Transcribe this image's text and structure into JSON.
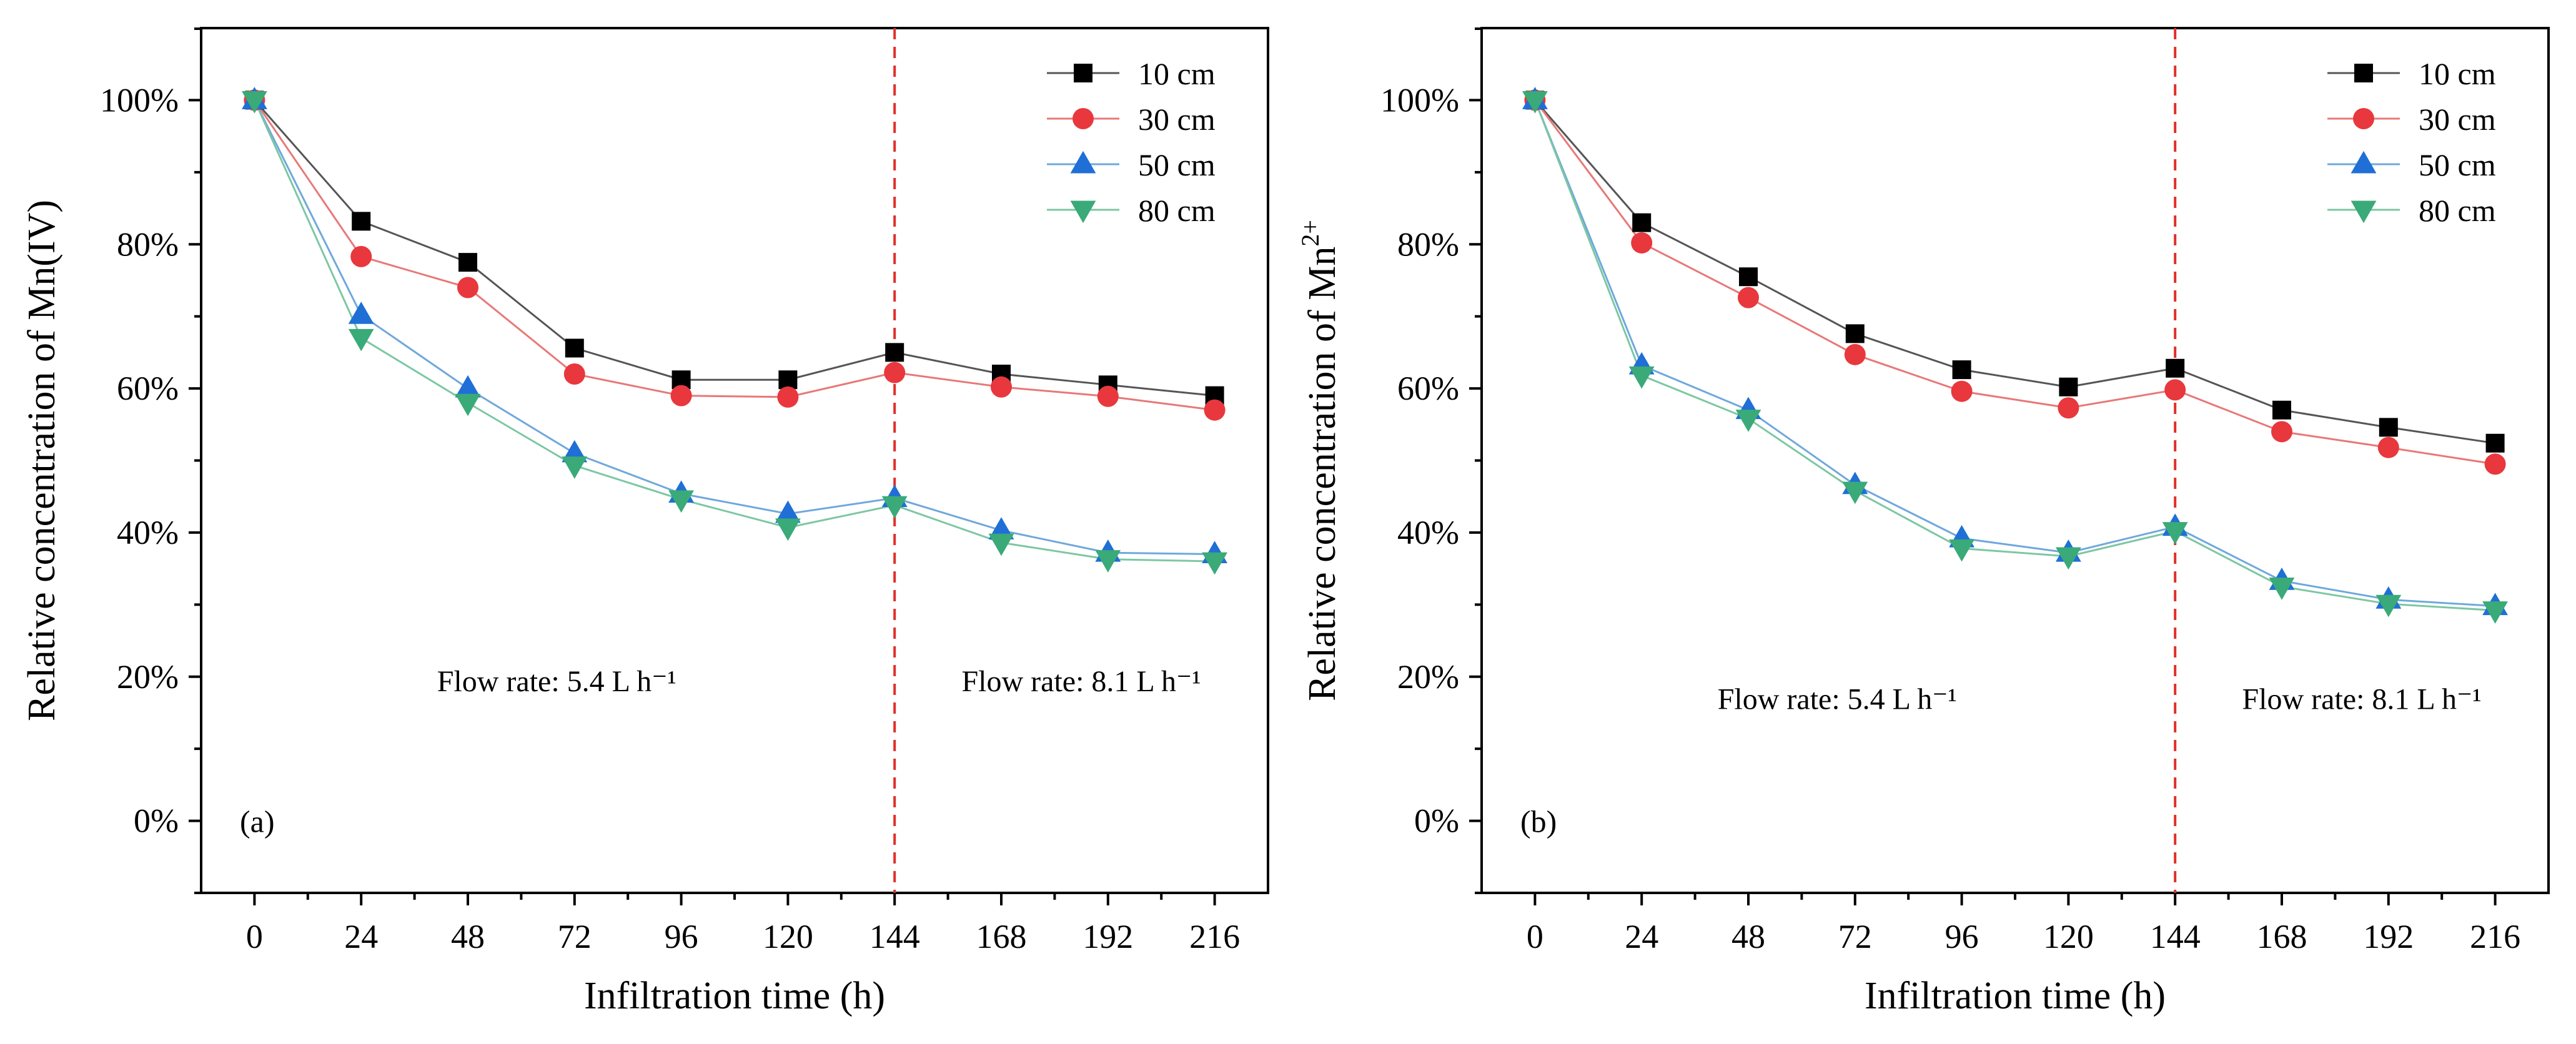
{
  "chart_data": [
    {
      "type": "line",
      "panel_label": "(a)",
      "xlabel": "Infiltration time (h)",
      "ylabel": "Relative concentration of Mn(IV)",
      "ylabel_sup": "",
      "x": [
        0,
        24,
        48,
        72,
        96,
        120,
        144,
        168,
        192,
        216
      ],
      "xlim": [
        -12,
        228
      ],
      "ylim": [
        -10,
        110
      ],
      "yticks": [
        0,
        20,
        40,
        60,
        80,
        100
      ],
      "ytick_labels": [
        "0%",
        "20%",
        "40%",
        "60%",
        "80%",
        "100%"
      ],
      "vline_x": 144,
      "annotations": [
        {
          "text": "Flow rate: 5.4 L h⁻¹",
          "x": 68,
          "y": 18
        },
        {
          "text": "Flow rate: 8.1 L h⁻¹",
          "x": 186,
          "y": 18
        }
      ],
      "legend_position": "top-right",
      "series": [
        {
          "name": "10 cm",
          "marker": "square",
          "color": "#000000",
          "line_color": "#555555",
          "values": [
            100,
            83.2,
            77.5,
            65.6,
            61.2,
            61.2,
            65.0,
            62.0,
            60.5,
            59.0
          ]
        },
        {
          "name": "30 cm",
          "marker": "circle",
          "color": "#e8383d",
          "line_color": "#e87878",
          "values": [
            100,
            78.3,
            74.0,
            62.0,
            59.0,
            58.8,
            62.2,
            60.2,
            58.9,
            57.0
          ]
        },
        {
          "name": "50 cm",
          "marker": "triangle-up",
          "color": "#1f6fd6",
          "line_color": "#6fa8dc",
          "values": [
            100,
            70.2,
            60.0,
            51.0,
            45.4,
            42.6,
            44.8,
            40.3,
            37.2,
            37.0
          ]
        },
        {
          "name": "80 cm",
          "marker": "triangle-down",
          "color": "#3aaa78",
          "line_color": "#7cc7a2",
          "values": [
            100,
            67.0,
            58.0,
            49.3,
            44.6,
            40.7,
            43.8,
            38.6,
            36.3,
            36.0
          ]
        }
      ]
    },
    {
      "type": "line",
      "panel_label": "(b)",
      "xlabel": "Infiltration time (h)",
      "ylabel": "Relative concentration of Mn",
      "ylabel_sup": "2+",
      "x": [
        0,
        24,
        48,
        72,
        96,
        120,
        144,
        168,
        192,
        216
      ],
      "xlim": [
        -12,
        228
      ],
      "ylim": [
        -10,
        110
      ],
      "yticks": [
        0,
        20,
        40,
        60,
        80,
        100
      ],
      "ytick_labels": [
        "0%",
        "20%",
        "40%",
        "60%",
        "80%",
        "100%"
      ],
      "vline_x": 144,
      "annotations": [
        {
          "text": "Flow rate: 5.4 L h⁻¹",
          "x": 68,
          "y": 15.5
        },
        {
          "text": "Flow rate: 8.1 L h⁻¹",
          "x": 186,
          "y": 15.5
        }
      ],
      "legend_position": "top-right",
      "series": [
        {
          "name": "10 cm",
          "marker": "square",
          "color": "#000000",
          "line_color": "#555555",
          "values": [
            100,
            83.0,
            75.5,
            67.6,
            62.6,
            60.2,
            62.8,
            57.0,
            54.6,
            52.4
          ]
        },
        {
          "name": "30 cm",
          "marker": "circle",
          "color": "#e8383d",
          "line_color": "#e87878",
          "values": [
            100,
            80.2,
            72.6,
            64.7,
            59.6,
            57.3,
            59.8,
            54.0,
            51.8,
            49.5
          ]
        },
        {
          "name": "50 cm",
          "marker": "triangle-up",
          "color": "#1f6fd6",
          "line_color": "#6fa8dc",
          "values": [
            100,
            63.2,
            57.0,
            46.6,
            39.2,
            37.2,
            40.8,
            33.3,
            30.7,
            29.8
          ]
        },
        {
          "name": "80 cm",
          "marker": "triangle-down",
          "color": "#3aaa78",
          "line_color": "#7cc7a2",
          "values": [
            100,
            61.8,
            55.8,
            45.8,
            37.8,
            36.7,
            40.2,
            32.5,
            30.1,
            29.2
          ]
        }
      ]
    }
  ]
}
